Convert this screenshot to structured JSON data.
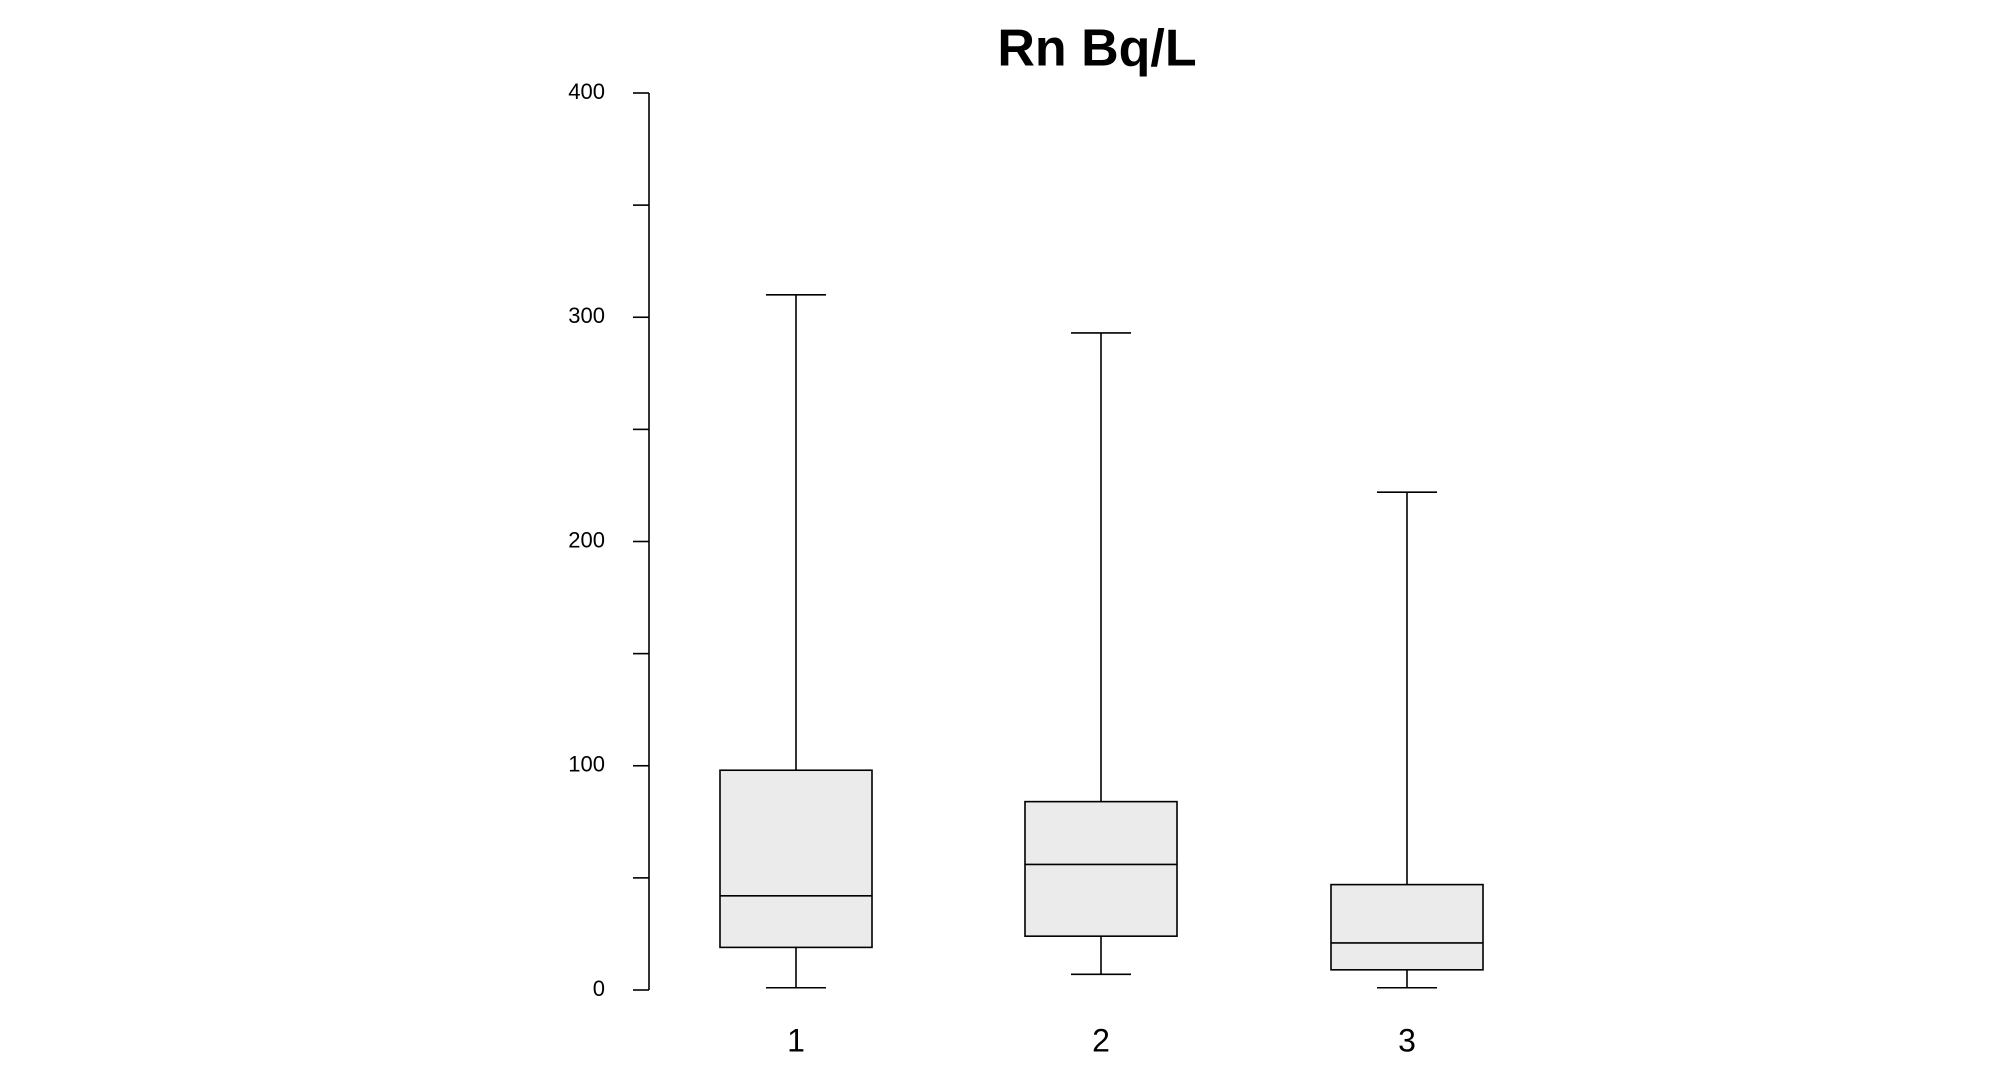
{
  "chart_data": {
    "type": "box",
    "title": "Rn Bq/L",
    "categories": [
      "1",
      "2",
      "3"
    ],
    "min": [
      1,
      7,
      1
    ],
    "q1": [
      19,
      24,
      9
    ],
    "median": [
      42,
      56,
      21
    ],
    "q3": [
      98,
      84,
      47
    ],
    "max": [
      310,
      293,
      222
    ],
    "color": "#ebebeb",
    "ylim": [
      0,
      400
    ],
    "yticks": [
      0,
      100,
      200,
      300,
      400
    ],
    "minor_yticks": [
      50,
      150,
      250,
      350
    ]
  }
}
